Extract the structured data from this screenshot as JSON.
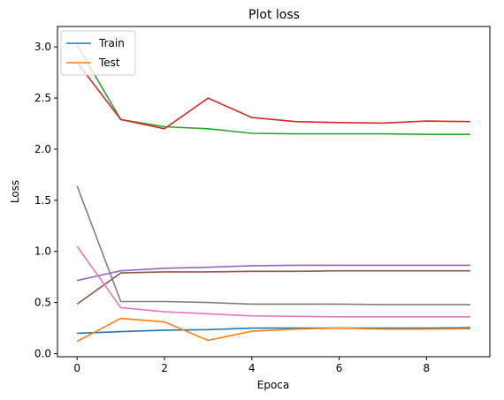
{
  "chart_data": {
    "type": "line",
    "title": "Plot loss",
    "xlabel": "Epoca",
    "ylabel": "Loss",
    "xlim": [
      -0.45,
      9.45
    ],
    "ylim": [
      -0.03,
      3.2
    ],
    "xticks": [
      0,
      2,
      4,
      6,
      8
    ],
    "yticks": [
      0.0,
      0.5,
      1.0,
      1.5,
      2.0,
      2.5,
      3.0
    ],
    "xtick_labels": [
      "0",
      "2",
      "4",
      "6",
      "8"
    ],
    "ytick_labels": [
      "0.0",
      "0.5",
      "1.0",
      "1.5",
      "2.0",
      "2.5",
      "3.0"
    ],
    "grid": false,
    "legend_position": "top-left",
    "x": [
      0,
      1,
      2,
      3,
      4,
      5,
      6,
      7,
      8,
      9
    ],
    "series": [
      {
        "name": "Train",
        "color": "#1f77b4",
        "values": [
          0.2,
          0.215,
          0.23,
          0.235,
          0.25,
          0.25,
          0.25,
          0.25,
          0.25,
          0.255
        ]
      },
      {
        "name": "Test",
        "color": "#ff7f0e",
        "values": [
          0.12,
          0.345,
          0.31,
          0.13,
          0.22,
          0.24,
          0.25,
          0.24,
          0.24,
          0.245
        ]
      },
      {
        "color": "#2ca02c",
        "values": [
          3.02,
          2.29,
          2.22,
          2.2,
          2.155,
          2.15,
          2.15,
          2.15,
          2.145,
          2.145
        ]
      },
      {
        "color": "#d62728",
        "values": [
          2.85,
          2.29,
          2.2,
          2.5,
          2.31,
          2.27,
          2.26,
          2.255,
          2.275,
          2.27
        ]
      },
      {
        "color": "#9467bd",
        "values": [
          0.715,
          0.81,
          0.835,
          0.845,
          0.86,
          0.865,
          0.865,
          0.865,
          0.865,
          0.865
        ]
      },
      {
        "color": "#8c564b",
        "values": [
          0.485,
          0.79,
          0.8,
          0.8,
          0.805,
          0.805,
          0.81,
          0.81,
          0.81,
          0.81
        ]
      },
      {
        "color": "#e377c2",
        "values": [
          1.05,
          0.45,
          0.41,
          0.39,
          0.37,
          0.365,
          0.36,
          0.36,
          0.36,
          0.36
        ]
      },
      {
        "color": "#7f7f7f",
        "values": [
          1.64,
          0.51,
          0.51,
          0.5,
          0.485,
          0.485,
          0.485,
          0.48,
          0.48,
          0.48
        ]
      }
    ]
  }
}
